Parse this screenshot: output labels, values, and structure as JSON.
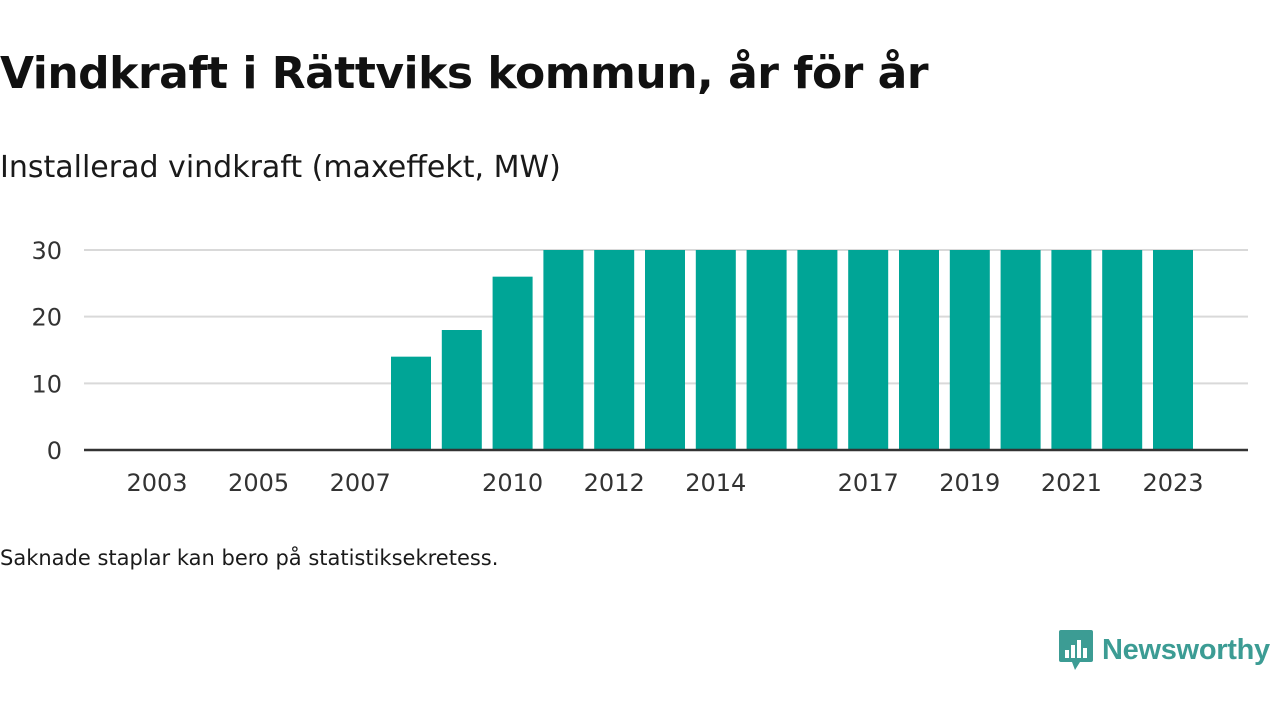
{
  "title": "Vindkraft i Rättviks kommun, år för år",
  "subtitle": "Installerad vindkraft (maxeffekt, MW)",
  "footnote": "Saknade staplar kan bero på statistiksekretess.",
  "brand": {
    "name": "Newsworthy",
    "color": "#3c9c94",
    "icon": "newsworthy-chart-bubble-icon"
  },
  "chart_data": {
    "type": "bar",
    "categories": [
      "2003",
      "2004",
      "2005",
      "2006",
      "2007",
      "2008",
      "2009",
      "2010",
      "2011",
      "2012",
      "2013",
      "2014",
      "2015",
      "2016",
      "2017",
      "2018",
      "2019",
      "2020",
      "2021",
      "2022",
      "2023"
    ],
    "values": [
      0,
      0,
      0,
      0,
      0,
      14,
      18,
      26,
      30,
      30,
      30,
      30,
      30,
      30,
      30,
      30,
      30,
      30,
      30,
      30,
      30
    ],
    "x_tick_labels": [
      "2003",
      "2005",
      "2007",
      "2010",
      "2012",
      "2014",
      "2017",
      "2019",
      "2021",
      "2023"
    ],
    "y_ticks": [
      0,
      10,
      20,
      30
    ],
    "ylim": [
      0,
      30
    ],
    "xlabel": "",
    "ylabel": "",
    "bar_color": "#00a596",
    "grid": true
  }
}
